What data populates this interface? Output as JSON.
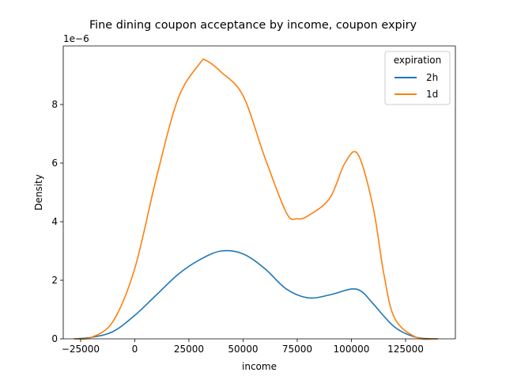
{
  "chart_data": {
    "type": "line",
    "title": "Fine dining coupon acceptance by income, coupon expiry",
    "xlabel": "income",
    "ylabel": "Density",
    "y_scale_label": "1e−6",
    "xlim": [
      -33000,
      148000
    ],
    "ylim": [
      0,
      1e-05
    ],
    "x_ticks": [
      -25000,
      0,
      25000,
      50000,
      75000,
      100000,
      125000
    ],
    "x_tick_labels": [
      "−25000",
      "0",
      "25000",
      "50000",
      "75000",
      "100000",
      "125000"
    ],
    "y_ticks": [
      0,
      2e-06,
      4e-06,
      6e-06,
      8e-06
    ],
    "y_tick_labels": [
      "0",
      "2",
      "4",
      "6",
      "8"
    ],
    "grid": false,
    "legend": {
      "title": "expiration",
      "placement": "top-right"
    },
    "series": [
      {
        "name": "2h",
        "color": "#1f77b4",
        "x": [
          -28000,
          -20000,
          -10000,
          0,
          10000,
          20000,
          30000,
          40000,
          50000,
          60000,
          70000,
          80000,
          90000,
          100000,
          105000,
          110000,
          120000,
          130000,
          140000
        ],
        "y": [
          0,
          5e-08,
          2.5e-07,
          8e-07,
          1.5e-06,
          2.2e-06,
          2.7e-06,
          3e-06,
          2.9e-06,
          2.4e-06,
          1.7e-06,
          1.4e-06,
          1.5e-06,
          1.7e-06,
          1.6e-06,
          1.2e-06,
          4e-07,
          5e-08,
          0
        ]
      },
      {
        "name": "1d",
        "color": "#ff7f0e",
        "x": [
          -28000,
          -20000,
          -10000,
          0,
          10000,
          20000,
          30000,
          33000,
          40000,
          50000,
          60000,
          70000,
          75000,
          80000,
          90000,
          97000,
          103000,
          110000,
          115000,
          120000,
          130000,
          140000
        ],
        "y": [
          0,
          5e-08,
          6e-07,
          2.4e-06,
          5.5e-06,
          8.2e-06,
          9.4e-06,
          9.5e-06,
          9.1e-06,
          8.3e-06,
          6.2e-06,
          4.3e-06,
          4.1e-06,
          4.2e-06,
          4.8e-06,
          6e-06,
          6.3e-06,
          4.5e-06,
          2.2e-06,
          7e-07,
          5e-08,
          0
        ]
      }
    ]
  }
}
